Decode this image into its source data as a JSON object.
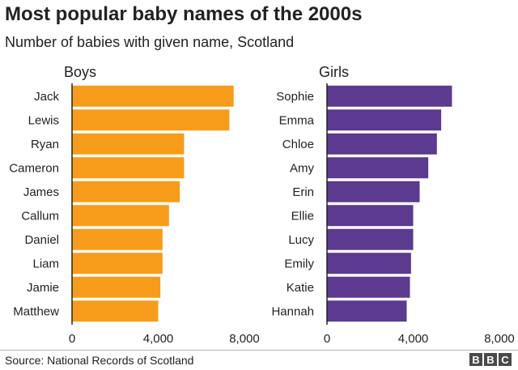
{
  "title": "Most popular baby names of the 2000s",
  "subtitle": "Number of babies with given name, Scotland",
  "source": "Source: National Records of Scotland",
  "logo": [
    "B",
    "B",
    "C"
  ],
  "chart_data": [
    {
      "type": "bar",
      "orientation": "horizontal",
      "title": "Boys",
      "color": "#f79c1a",
      "categories": [
        "Jack",
        "Lewis",
        "Ryan",
        "Cameron",
        "James",
        "Callum",
        "Daniel",
        "Liam",
        "Jamie",
        "Matthew"
      ],
      "values": [
        7500,
        7300,
        5200,
        5200,
        5000,
        4500,
        4200,
        4200,
        4100,
        4000
      ],
      "xlim": [
        0,
        8000
      ],
      "xticks": [
        "0",
        "4,000",
        "8,000"
      ],
      "grid": false
    },
    {
      "type": "bar",
      "orientation": "horizontal",
      "title": "Girls",
      "color": "#5b3a8f",
      "categories": [
        "Sophie",
        "Emma",
        "Chloe",
        "Amy",
        "Erin",
        "Ellie",
        "Lucy",
        "Emily",
        "Katie",
        "Hannah"
      ],
      "values": [
        5800,
        5300,
        5100,
        4700,
        4300,
        4000,
        4000,
        3900,
        3850,
        3700
      ],
      "xlim": [
        0,
        8000
      ],
      "xticks": [
        "0",
        "4,000",
        "8,000"
      ],
      "grid": false
    }
  ]
}
